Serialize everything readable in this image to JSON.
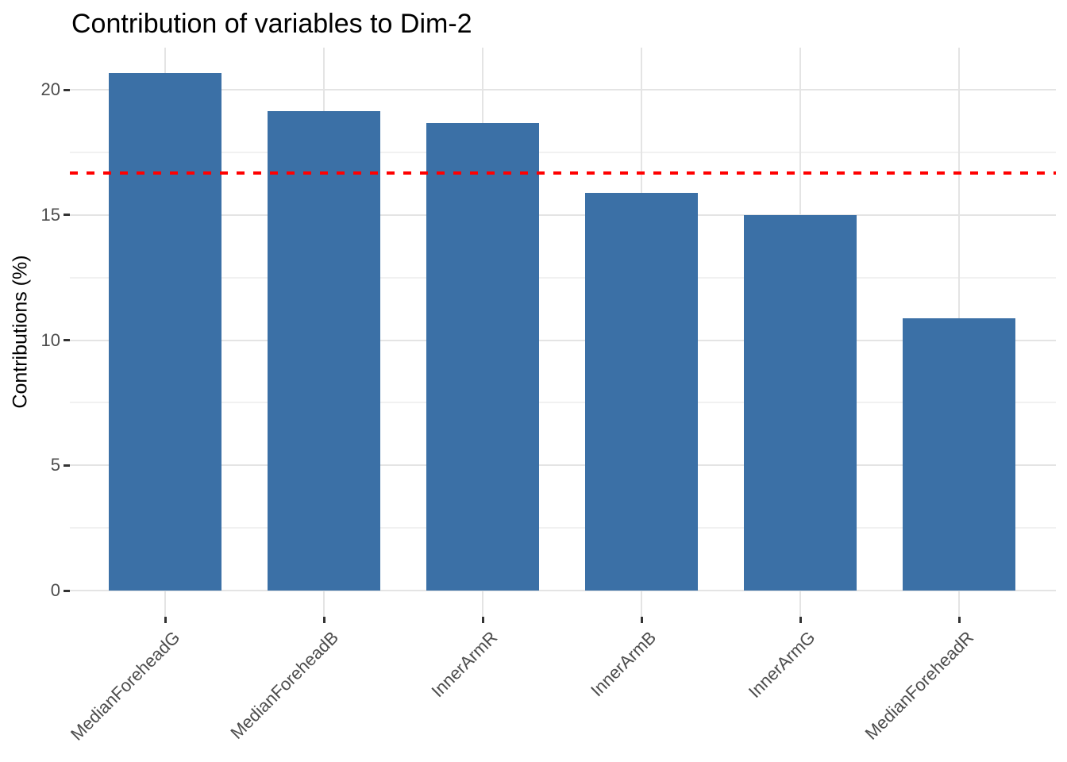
{
  "chart_data": {
    "type": "bar",
    "title": "Contribution of variables to Dim-2",
    "xlabel": "",
    "ylabel": "Contributions (%)",
    "categories": [
      "MedianForeheadG",
      "MedianForeheadB",
      "InnerArmR",
      "InnerArmB",
      "InnerArmG",
      "MedianForeheadR"
    ],
    "values": [
      20.66,
      19.15,
      18.67,
      15.88,
      15.0,
      10.88
    ],
    "ylim": [
      0,
      21.7
    ],
    "yticks": [
      0,
      5,
      10,
      15,
      20
    ],
    "minor_gridlines": [
      2.5,
      7.5,
      12.5,
      17.5
    ],
    "grid": true,
    "legend_position": "none",
    "reference_line": {
      "value": 16.67,
      "style": "dashed",
      "color": "#FF0000"
    },
    "bar_color": "#3B70A6",
    "background_color": "#FFFFFF",
    "major_gridline_color": "#E4E4E4",
    "minor_gridline_color": "#F1F1F1",
    "tick_color": "#333333",
    "axis_text_color": "#4D4D4D",
    "title_color": "#000000"
  }
}
